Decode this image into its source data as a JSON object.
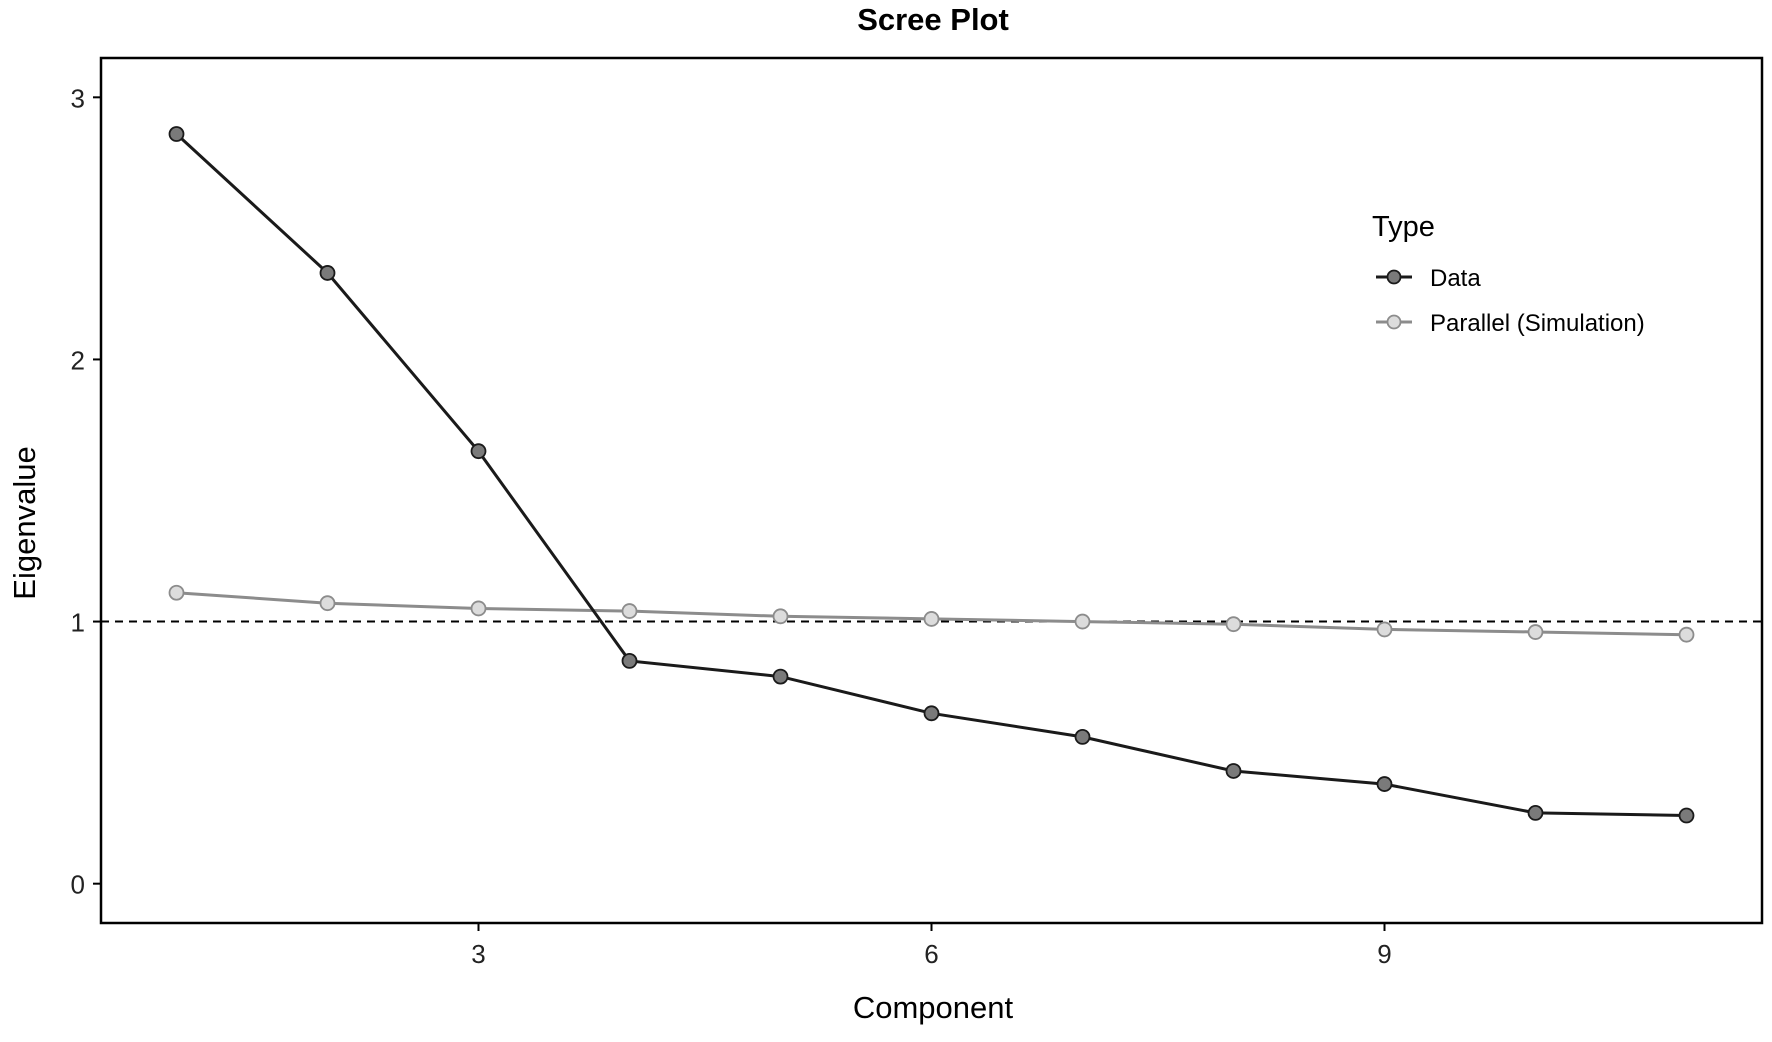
{
  "chart_data": {
    "type": "line",
    "title": "Scree Plot",
    "xlabel": "Component",
    "ylabel": "Eigenvalue",
    "xlim": [
      0.5,
      11.5
    ],
    "ylim": [
      -0.15,
      3.15
    ],
    "xticks": [
      3,
      6,
      9
    ],
    "yticks": [
      0,
      1,
      2,
      3
    ],
    "reference_line": {
      "y": 1,
      "style": "dashed"
    },
    "grid": false,
    "legend": {
      "title": "Type",
      "position": "top-right, inside plot"
    },
    "x": [
      1,
      2,
      3,
      4,
      5,
      6,
      7,
      8,
      9,
      10,
      11
    ],
    "series": [
      {
        "name": "Data",
        "color": "#1a1a1a",
        "marker_fill": "#7a7a7a",
        "values": [
          2.86,
          2.33,
          1.65,
          0.85,
          0.79,
          0.65,
          0.56,
          0.43,
          0.38,
          0.27,
          0.26
        ]
      },
      {
        "name": "Parallel (Simulation)",
        "color": "#8c8c8c",
        "marker_fill": "#dcdcdc",
        "values": [
          1.11,
          1.07,
          1.05,
          1.04,
          1.02,
          1.01,
          1.0,
          0.99,
          0.97,
          0.96,
          0.95
        ]
      }
    ]
  }
}
